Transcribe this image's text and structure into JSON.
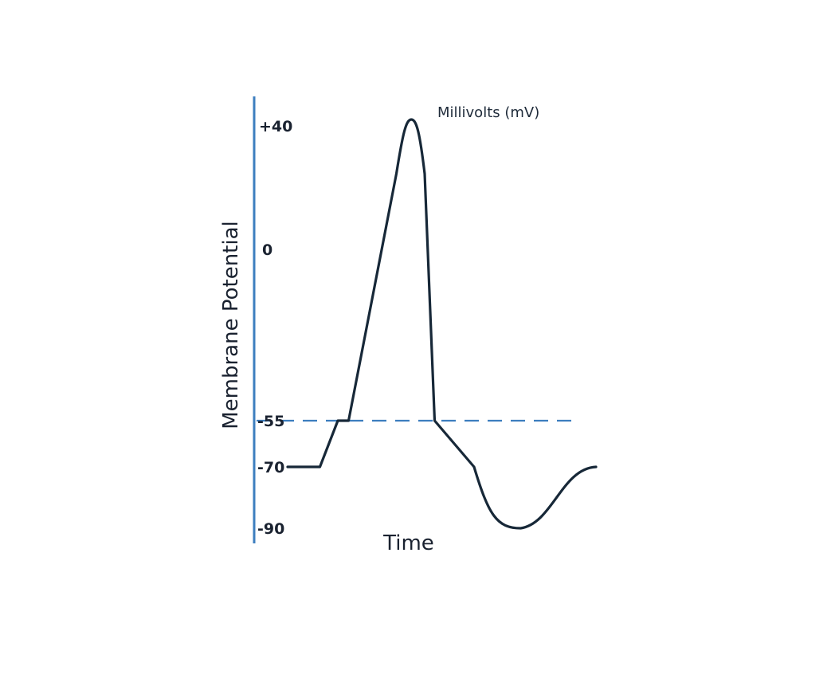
{
  "chart_data": {
    "type": "line",
    "title": "",
    "xlabel": "Time",
    "ylabel": "Membrane Potential",
    "unit_label": "Millivolts (mV)",
    "yticks": [
      {
        "value": 40,
        "label": "+40"
      },
      {
        "value": 0,
        "label": "0"
      },
      {
        "value": -55,
        "label": "-55"
      },
      {
        "value": -70,
        "label": "-70"
      },
      {
        "value": -90,
        "label": "-90"
      }
    ],
    "threshold": {
      "value": -55,
      "style": "dashed"
    },
    "series": [
      {
        "x": [
          0,
          0.9,
          1.4,
          1.7,
          3.3,
          3.6,
          4.1,
          5.2,
          6.5,
          7.2,
          8.6
        ],
        "y": [
          -70,
          -70,
          -55,
          -55,
          40,
          40,
          -55,
          -70,
          -90,
          -85,
          -70
        ]
      }
    ],
    "grid": false,
    "colors": {
      "line": "#172838",
      "axis": "#3d7ebf",
      "threshold": "#3d7ebf"
    }
  }
}
